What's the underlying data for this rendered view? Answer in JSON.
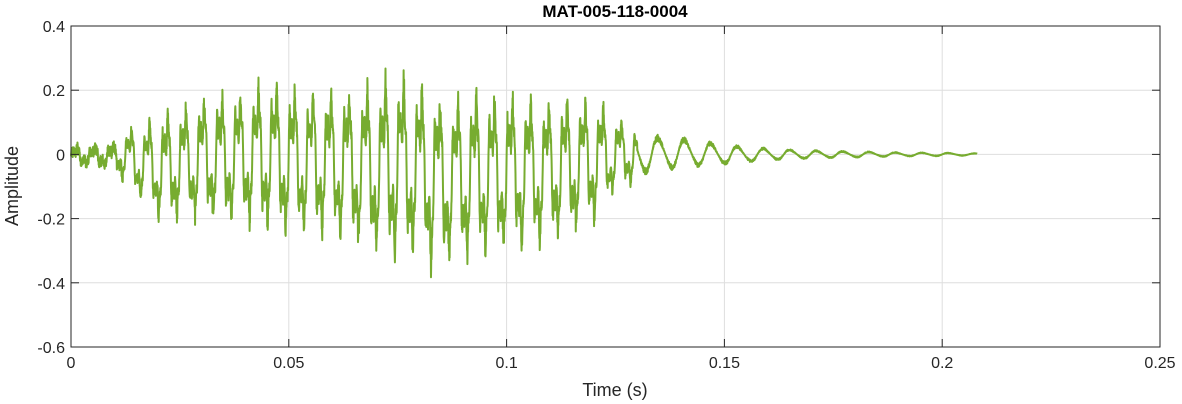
{
  "chart_data": {
    "type": "line",
    "title": "MAT-005-118-0004",
    "xlabel": "Time (s)",
    "ylabel": "Amplitude",
    "xlim": [
      0,
      0.25
    ],
    "ylim": [
      -0.6,
      0.4
    ],
    "xticks": [
      0,
      0.05,
      0.1,
      0.15,
      0.2,
      0.25
    ],
    "xtick_labels": [
      "0",
      "0.05",
      "0.1",
      "0.15",
      "0.2",
      "0.25"
    ],
    "yticks": [
      -0.6,
      -0.4,
      -0.2,
      0,
      0.2,
      0.4
    ],
    "ytick_labels": [
      "-0.6",
      "-0.4",
      "-0.2",
      "0",
      "0.2",
      "0.4"
    ],
    "grid": true,
    "legend": false,
    "line_color": "#77ac30",
    "series": [
      {
        "x": [
          0,
          0.01,
          0.013,
          0.02,
          0.03,
          0.04,
          0.045,
          0.05,
          0.06,
          0.07,
          0.074,
          0.08,
          0.083,
          0.09,
          0.1,
          0.11,
          0.12,
          0.125,
          0.13,
          0.14,
          0.15,
          0.16,
          0.17,
          0.18,
          0.19,
          0.2,
          0.208
        ],
        "upper": [
          0.03,
          0.04,
          0.1,
          0.15,
          0.22,
          0.25,
          0.28,
          0.26,
          0.25,
          0.27,
          0.32,
          0.27,
          0.26,
          0.24,
          0.24,
          0.22,
          0.22,
          0.14,
          0.1,
          0.08,
          0.05,
          0.03,
          0.02,
          0.015,
          0.01,
          0.008,
          0.005
        ],
        "lower": [
          -0.04,
          -0.05,
          -0.12,
          -0.24,
          -0.25,
          -0.27,
          -0.28,
          -0.3,
          -0.3,
          -0.36,
          -0.39,
          -0.36,
          -0.42,
          -0.38,
          -0.35,
          -0.32,
          -0.26,
          -0.14,
          -0.1,
          -0.07,
          -0.05,
          -0.03,
          -0.02,
          -0.015,
          -0.01,
          -0.008,
          -0.005
        ]
      }
    ]
  }
}
